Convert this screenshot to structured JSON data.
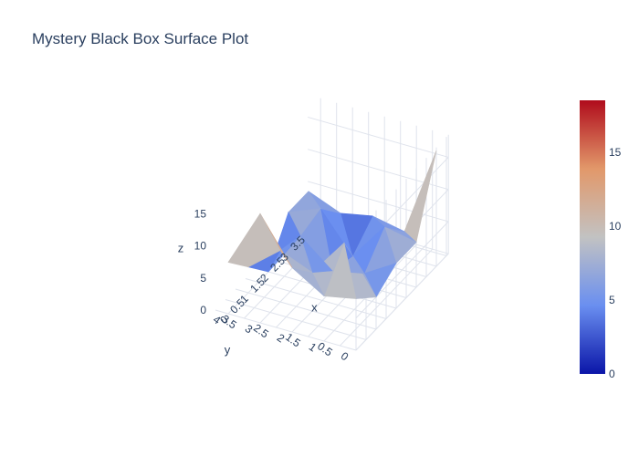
{
  "title": "Mystery Black Box Surface Plot",
  "chart_data": {
    "type": "surface",
    "title": "Mystery Black Box Surface Plot",
    "xlabel": "x",
    "ylabel": "y",
    "zlabel": "z",
    "x": [
      0,
      1,
      2,
      3,
      4
    ],
    "y": [
      0,
      1,
      2,
      3,
      4
    ],
    "z": [
      [
        8,
        5,
        7,
        7,
        18
      ],
      [
        7,
        12,
        4,
        8,
        4
      ],
      [
        10,
        6,
        3,
        2,
        5
      ],
      [
        17,
        8,
        7,
        8,
        4
      ],
      [
        8,
        4,
        0,
        6,
        6
      ]
    ],
    "x_ticks": [
      "0",
      "0.5",
      "1",
      "1.5",
      "2",
      "2.5",
      "3",
      "3.5"
    ],
    "y_ticks": [
      "0",
      "0.5",
      "1",
      "1.5",
      "2",
      "2.5",
      "3",
      "3.5",
      "4"
    ],
    "z_ticks": [
      "0",
      "5",
      "10",
      "15"
    ],
    "zlim": [
      0,
      18.5
    ],
    "colorscale": "RdBu-like (blue-grey-red)",
    "colors": [
      "#0a15a8",
      "#6a8ff0",
      "#c2c2c2",
      "#e2986a",
      "#b00c1c"
    ],
    "colorbar_ticks": [
      "0",
      "5",
      "10",
      "15"
    ]
  }
}
